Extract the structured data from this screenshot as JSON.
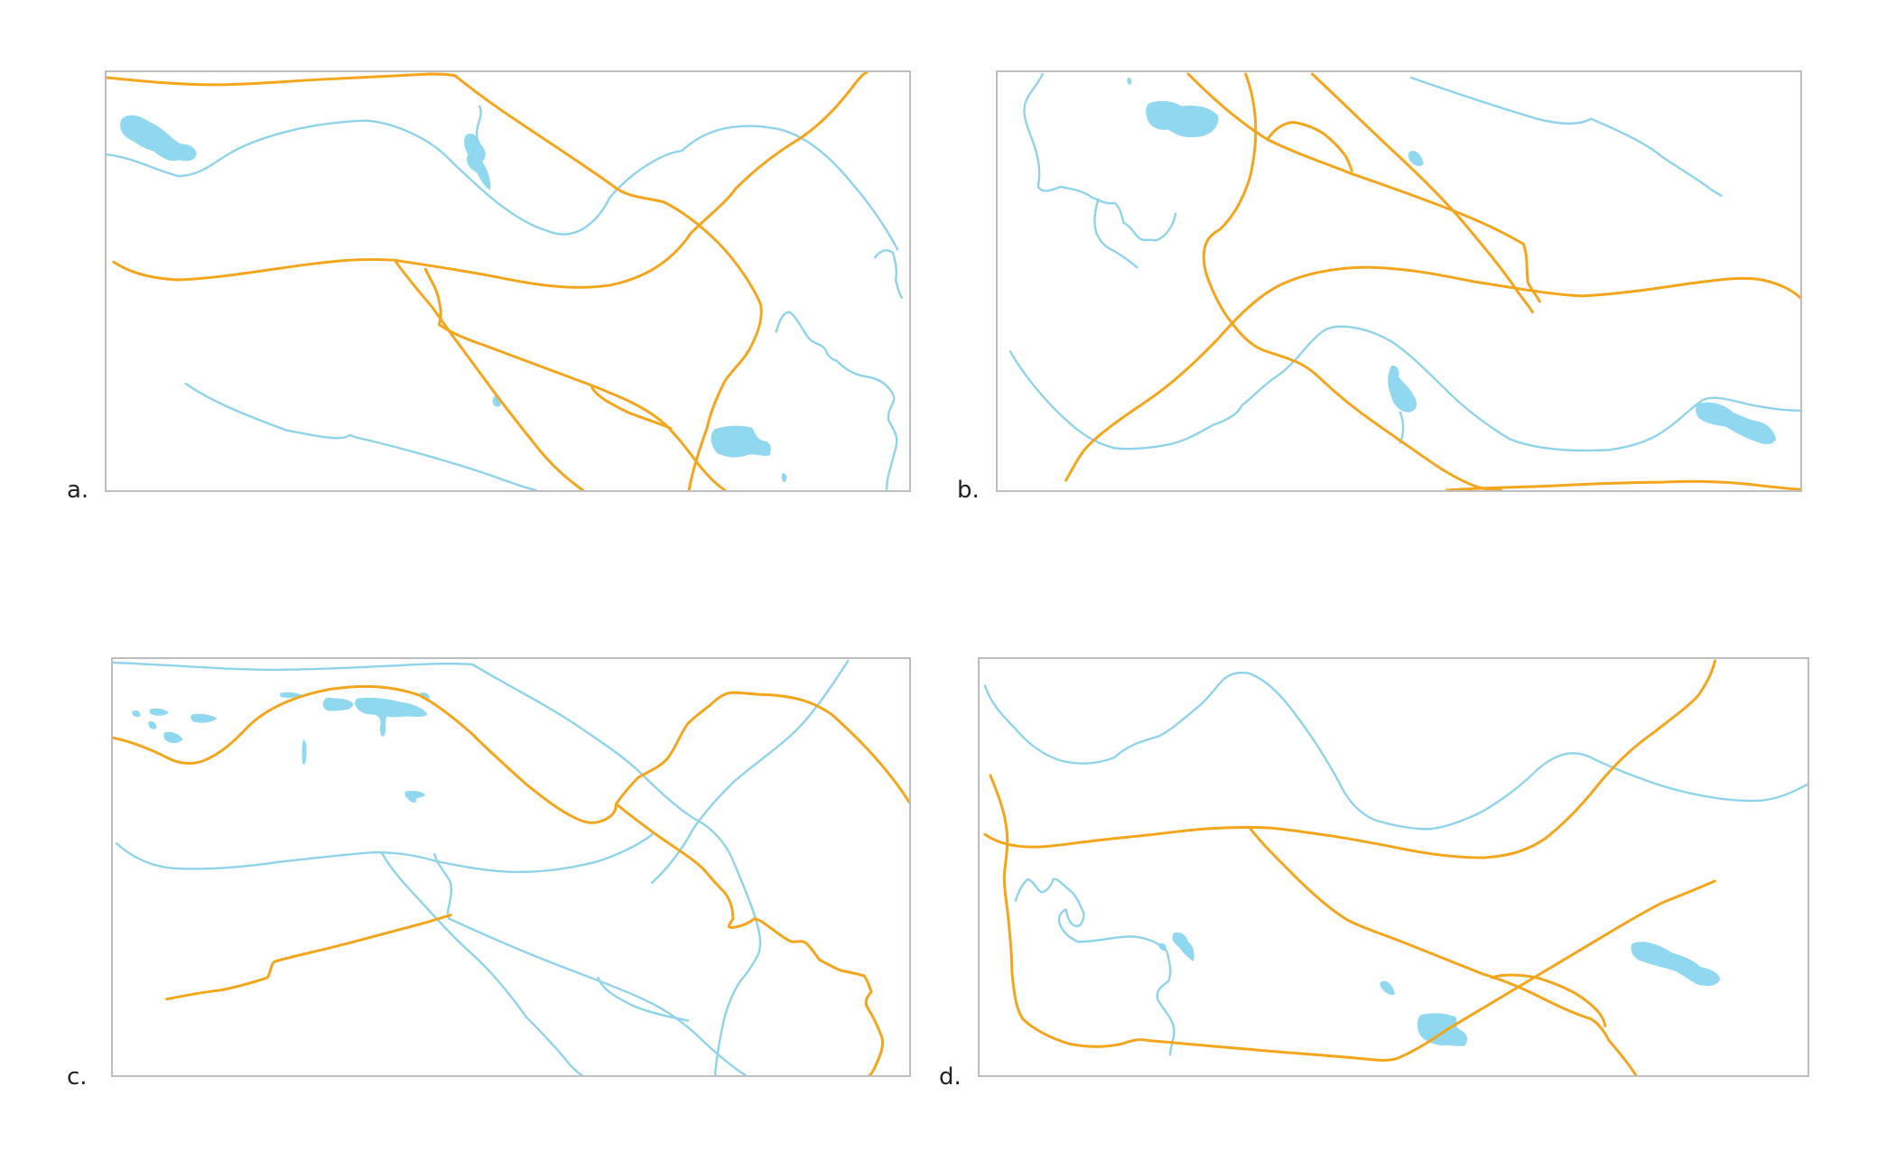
{
  "colors": {
    "road": "#f3a51b",
    "water": "#8fd8f0",
    "frame": "#bdbdbd"
  },
  "panels": [
    {
      "id": "a",
      "label": "a."
    },
    {
      "id": "b",
      "label": "b."
    },
    {
      "id": "c",
      "label": "c."
    },
    {
      "id": "d",
      "label": "d."
    }
  ]
}
